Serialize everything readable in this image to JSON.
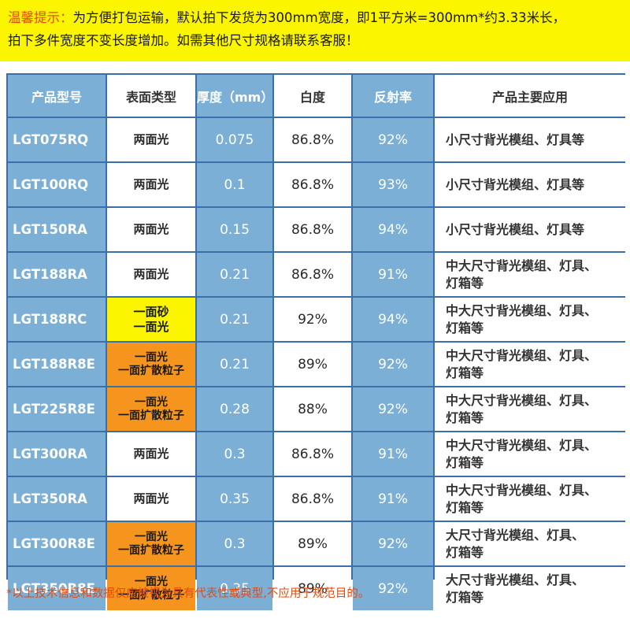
{
  "banner": {
    "line1_prefix": "温馨提示：",
    "line1_rest": "为方便打包运输，默认拍下发货为300mm宽度，即1平方米=300mm*约3.33米长，",
    "line2": "拍下多件宽度不变长度增加。如需其他尺寸规格请联系客服！"
  },
  "table": {
    "headers": [
      "产品型号",
      "表面类型",
      "厚度（mm）",
      "白度",
      "反射率",
      "产品主要应用"
    ],
    "rows": [
      {
        "model": "LGT075RQ",
        "surface": [
          "两面光"
        ],
        "surface_style": "white",
        "thickness": "0.075",
        "whiteness": "86.8%",
        "reflectance": "92%",
        "application": [
          "小尺寸背光模组、灯具等"
        ]
      },
      {
        "model": "LGT100RQ",
        "surface": [
          "两面光"
        ],
        "surface_style": "white",
        "thickness": "0.1",
        "whiteness": "86.8%",
        "reflectance": "93%",
        "application": [
          "小尺寸背光模组、灯具等"
        ]
      },
      {
        "model": "LGT150RA",
        "surface": [
          "两面光"
        ],
        "surface_style": "white",
        "thickness": "0.15",
        "whiteness": "86.8%",
        "reflectance": "94%",
        "application": [
          "小尺寸背光模组、灯具等"
        ]
      },
      {
        "model": "LGT188RA",
        "surface": [
          "两面光"
        ],
        "surface_style": "white",
        "thickness": "0.21",
        "whiteness": "86.8%",
        "reflectance": "91%",
        "application": [
          "中大尺寸背光模组、灯具、",
          "灯箱等"
        ]
      },
      {
        "model": "LGT188RC",
        "surface": [
          "一面砂",
          "一面光"
        ],
        "surface_style": "yellow",
        "thickness": "0.21",
        "whiteness": "92%",
        "reflectance": "94%",
        "application": [
          "中大尺寸背光模组、灯具、",
          "灯箱等"
        ]
      },
      {
        "model": "LGT188R8E",
        "surface": [
          "一面光",
          "一面扩散粒子"
        ],
        "surface_style": "orange",
        "thickness": "0.21",
        "whiteness": "89%",
        "reflectance": "92%",
        "application": [
          "中大尺寸背光模组、灯具、",
          "灯箱等"
        ]
      },
      {
        "model": "LGT225R8E",
        "surface": [
          "一面光",
          "一面扩散粒子"
        ],
        "surface_style": "orange",
        "thickness": "0.28",
        "whiteness": "88%",
        "reflectance": "92%",
        "application": [
          "中大尺寸背光模组、灯具、",
          "灯箱等"
        ]
      },
      {
        "model": "LGT300RA",
        "surface": [
          "两面光"
        ],
        "surface_style": "white",
        "thickness": "0.3",
        "whiteness": "86.8%",
        "reflectance": "91%",
        "application": [
          "中大尺寸背光模组、灯具、",
          "灯箱等"
        ]
      },
      {
        "model": "LGT350RA",
        "surface": [
          "两面光"
        ],
        "surface_style": "white",
        "thickness": "0.35",
        "whiteness": "86.8%",
        "reflectance": "91%",
        "application": [
          "中大尺寸背光模组、灯具、",
          "灯箱等"
        ]
      },
      {
        "model": "LGT300R8E",
        "surface": [
          "一面光",
          "一面扩散粒子"
        ],
        "surface_style": "orange",
        "thickness": "0.3",
        "whiteness": "89%",
        "reflectance": "92%",
        "application": [
          "大尺寸背光模组、灯具、",
          "灯箱等"
        ]
      },
      {
        "model": "LGT350R8E",
        "surface": [
          "一面光",
          "一面扩散粒子"
        ],
        "surface_style": "orange",
        "thickness": "0.35",
        "whiteness": "89%",
        "reflectance": "92%",
        "application": [
          "大尺寸背光模组、灯具、",
          "灯箱等"
        ]
      }
    ]
  },
  "footer": {
    "note": "*以上技术信息和数据仅应被视为具有代表性或典型,不应用于规范目的。"
  },
  "colors": {
    "banner_bg": "#fbf500",
    "accent_text": "#e8480c",
    "header_blue": "#7bafd6",
    "grid_blue": "#3a6fa8",
    "orange": "#f6951e"
  }
}
